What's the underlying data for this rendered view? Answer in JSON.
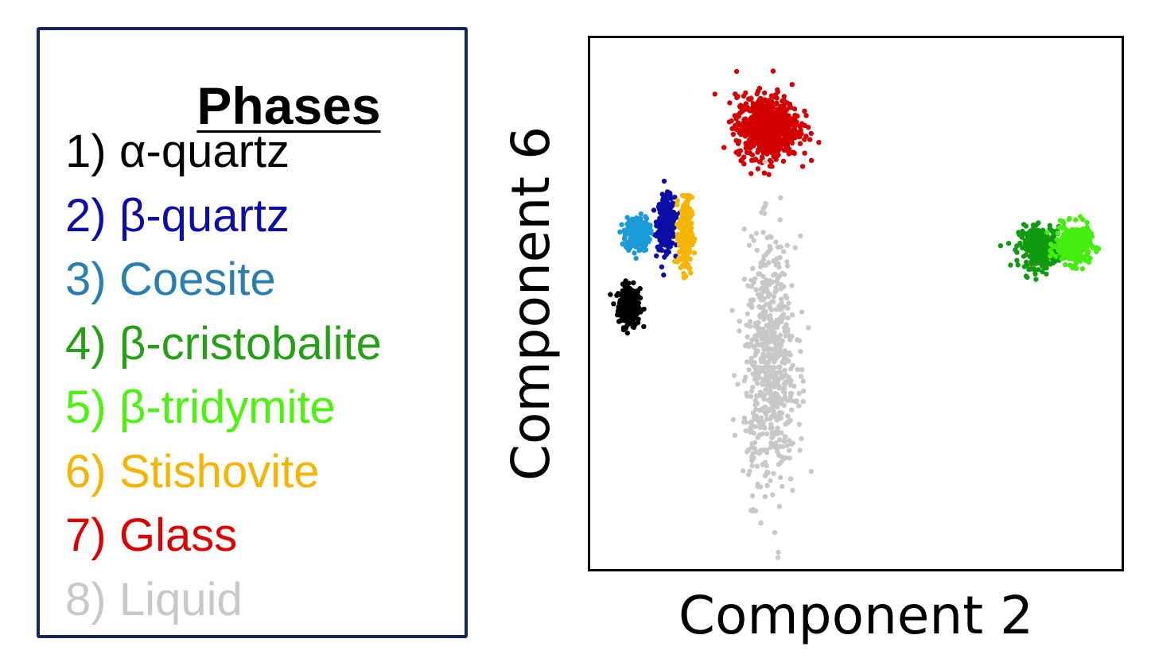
{
  "legend": {
    "title": "Phases",
    "items": [
      {
        "num": "1)",
        "label": "α-quartz",
        "color": "#000000"
      },
      {
        "num": "2)",
        "label": "β-quartz",
        "color": "#0c0ca6"
      },
      {
        "num": "3)",
        "label": "Coesite",
        "color": "#2a7fb0"
      },
      {
        "num": "4)",
        "label": "β-cristobalite",
        "color": "#26a017"
      },
      {
        "num": "5)",
        "label": "β-tridymite",
        "color": "#4df20e"
      },
      {
        "num": "6)",
        "label": "Stishovite",
        "color": "#f5b400"
      },
      {
        "num": "7)",
        "label": "Glass",
        "color": "#dd0000"
      },
      {
        "num": "8)",
        "label": "Liquid",
        "color": "#c8c8c8"
      }
    ]
  },
  "chart_data": {
    "type": "scatter",
    "title": "",
    "xlabel": "Component 2",
    "ylabel": "Component 6",
    "xlim": [
      0,
      100
    ],
    "ylim": [
      0,
      100
    ],
    "ticks": false,
    "grid": false,
    "series": [
      {
        "name": "α-quartz",
        "color": "#000000",
        "cx": 7.7,
        "cy": 49.5,
        "sx": 1.0,
        "sy": 1.9,
        "n": 260
      },
      {
        "name": "β-quartz",
        "color": "#0c0ca6",
        "cx": 14.6,
        "cy": 65.0,
        "sx": 0.8,
        "sy": 2.4,
        "n": 320
      },
      {
        "name": "Coesite",
        "color": "#1a9ad6",
        "cx": 9.2,
        "cy": 63.0,
        "sx": 1.1,
        "sy": 1.6,
        "n": 260
      },
      {
        "name": "β-cristobalite",
        "color": "#119a11",
        "cx": 84.5,
        "cy": 60.5,
        "sx": 2.0,
        "sy": 1.9,
        "n": 320
      },
      {
        "name": "β-tridymite",
        "color": "#44ee0d",
        "cx": 90.5,
        "cy": 61.0,
        "sx": 1.6,
        "sy": 1.8,
        "n": 300
      },
      {
        "name": "Stishovite",
        "color": "#f6b500",
        "cx": 18.2,
        "cy": 63.0,
        "sx": 0.6,
        "sy": 3.4,
        "n": 260
      },
      {
        "name": "Glass",
        "color": "#d40000",
        "cx": 33.5,
        "cy": 83.0,
        "sx": 2.9,
        "sy": 2.9,
        "n": 750
      },
      {
        "name": "Liquid",
        "color": "#c8c8c8",
        "cx": 34.0,
        "cy": 38.5,
        "sx": 2.4,
        "sy": 11.5,
        "n": 650
      }
    ]
  }
}
